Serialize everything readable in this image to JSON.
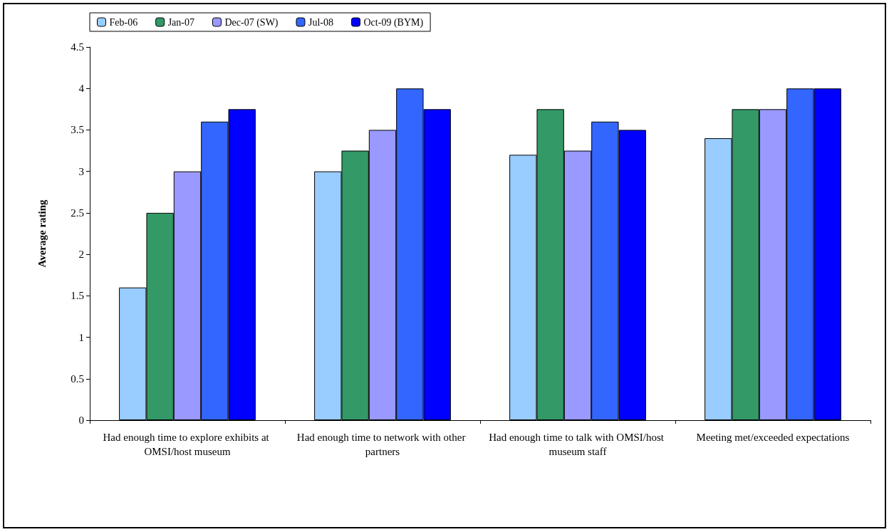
{
  "chart_data": {
    "type": "bar",
    "ylabel": "Average rating",
    "categories": [
      "Had enough time to explore exhibits at OMSI/host museum",
      "Had enough time to network with other partners",
      "Had enough time to talk with OMSI/host museum staff",
      "Meeting met/exceeded expectations"
    ],
    "series": [
      {
        "name": "Feb-06",
        "color": "#99ccff",
        "values": [
          1.6,
          3.0,
          3.2,
          3.4
        ]
      },
      {
        "name": "Jan-07",
        "color": "#339966",
        "values": [
          2.5,
          3.25,
          3.75,
          3.75
        ]
      },
      {
        "name": "Dec-07 (SW)",
        "color": "#9999ff",
        "values": [
          3.0,
          3.5,
          3.25,
          3.75
        ]
      },
      {
        "name": "Jul-08",
        "color": "#3366ff",
        "values": [
          3.6,
          4.0,
          3.6,
          4.0
        ]
      },
      {
        "name": "Oct-09 (BYM)",
        "color": "#0000ff",
        "values": [
          3.75,
          3.75,
          3.5,
          4.0
        ]
      }
    ],
    "ylim": [
      0,
      4.5
    ],
    "yticks": [
      0,
      0.5,
      1,
      1.5,
      2,
      2.5,
      3,
      3.5,
      4,
      4.5
    ],
    "grid": false,
    "legend": "top left"
  }
}
